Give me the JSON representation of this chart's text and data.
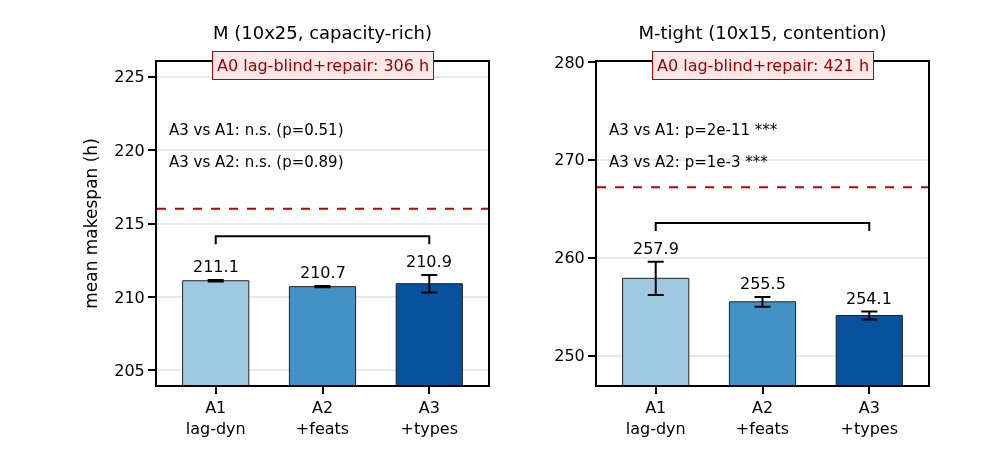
{
  "chart_data": [
    {
      "type": "bar",
      "title": "M (10x25, capacity-rich)",
      "ylabel": "mean makespan (h)",
      "categories": [
        "A1\nlag-dyn",
        "A2\n+feats",
        "A3\n+types"
      ],
      "values": [
        211.1,
        210.7,
        210.9
      ],
      "colors": [
        "#9ecae1",
        "#4292c6",
        "#08519c"
      ],
      "errors": [
        0.05,
        0.05,
        0.6
      ],
      "data_labels": true,
      "ylim": [
        204,
        226
      ],
      "yticks": [
        205,
        210,
        215,
        220,
        225
      ],
      "grid": "y",
      "ref_lines": [
        {
          "axis": "y",
          "value": 216,
          "color": "#c00000",
          "line_style": "dashed"
        }
      ],
      "annotations": [
        "A0 lag-blind+repair: 306 h",
        "A3 vs A1: n.s. (p=0.51)",
        "A3 vs A2: n.s. (p=0.89)"
      ]
    },
    {
      "type": "bar",
      "title": "M-tight (10x15, contention)",
      "categories": [
        "A1\nlag-dyn",
        "A2\n+feats",
        "A3\n+types"
      ],
      "values": [
        257.9,
        255.5,
        254.1
      ],
      "colors": [
        "#9ecae1",
        "#4292c6",
        "#08519c"
      ],
      "errors": [
        1.7,
        0.5,
        0.4
      ],
      "data_labels": true,
      "ylim": [
        247,
        280
      ],
      "yticks": [
        250,
        260,
        270,
        280
      ],
      "grid": "y",
      "ref_lines": [
        {
          "axis": "y",
          "value": 267.2,
          "color": "#c00000",
          "line_style": "dashed"
        }
      ],
      "annotations": [
        "A0 lag-blind+repair: 421 h",
        "A3 vs A1: p=2e-11 ***",
        "A3 vs A2: p=1e-3 ***"
      ]
    }
  ]
}
